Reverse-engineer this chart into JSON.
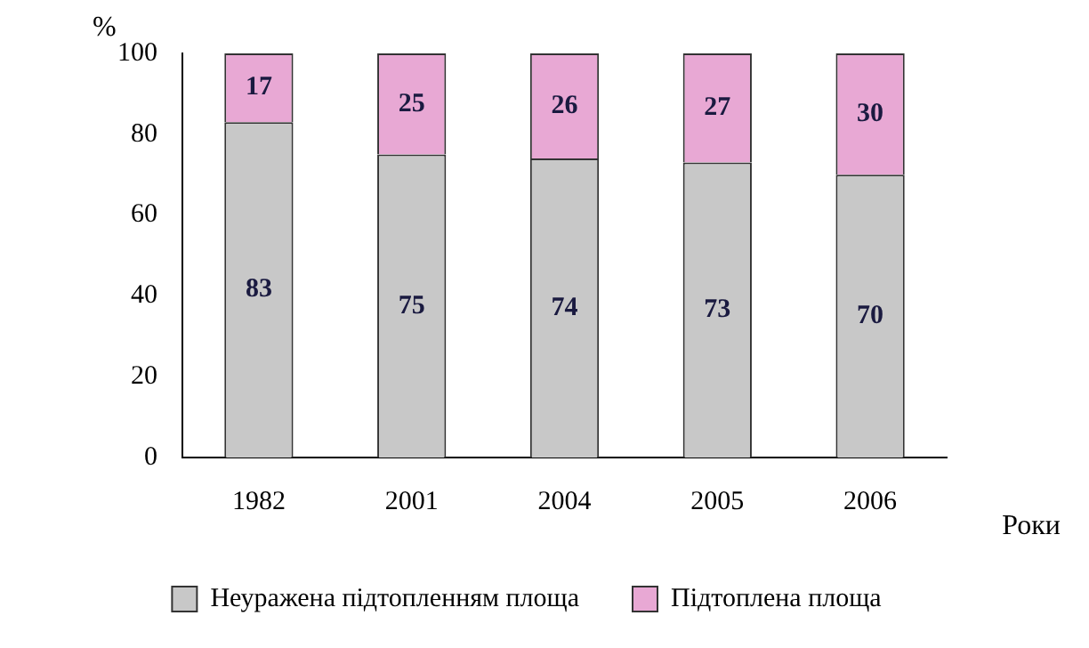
{
  "chart_data": {
    "type": "bar",
    "stacked": true,
    "xlabel": "Роки",
    "ylabel": "%",
    "categories": [
      "1982",
      "2001",
      "2004",
      "2005",
      "2006"
    ],
    "series": [
      {
        "name": "Неуражена підтопленням площа",
        "color": "#c8c8c8",
        "values": [
          83,
          75,
          74,
          73,
          70
        ]
      },
      {
        "name": "Підтоплена площа",
        "color": "#e8a8d4",
        "values": [
          17,
          25,
          26,
          27,
          30
        ]
      }
    ],
    "ylim": [
      0,
      100
    ],
    "yticks": [
      0,
      20,
      40,
      60,
      80,
      100
    ],
    "grid": false,
    "legend": "bottom",
    "data_labels": true
  }
}
